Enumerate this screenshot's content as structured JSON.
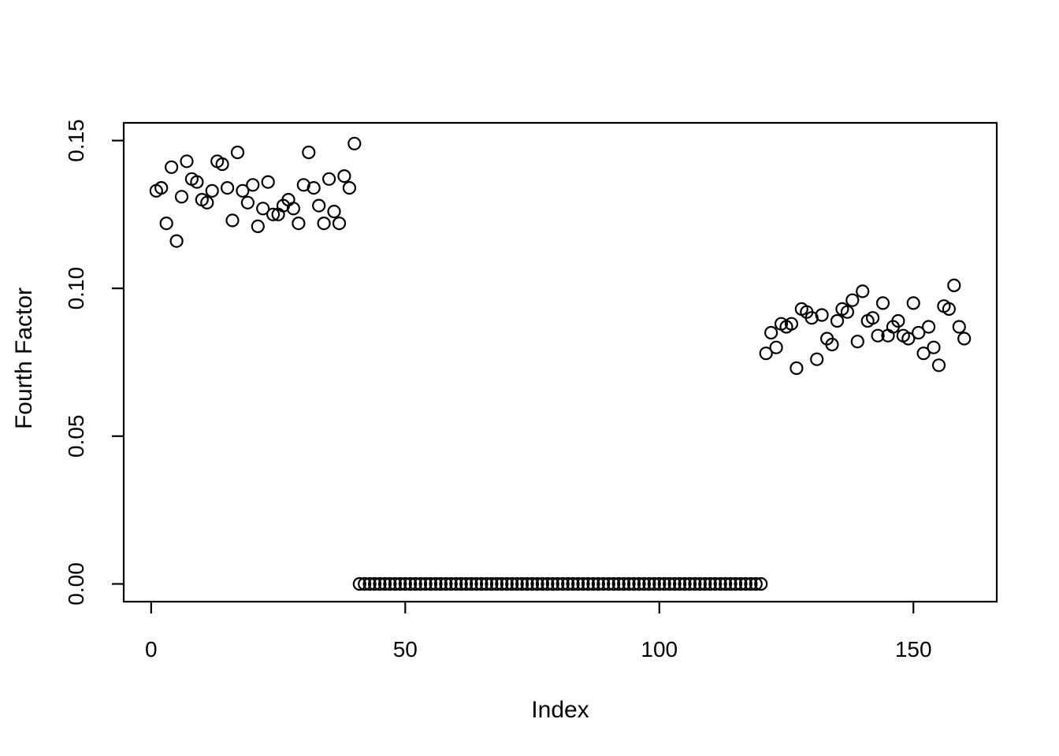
{
  "figure": {
    "background_color": "#ffffff",
    "foreground_color": "#000000",
    "title": ""
  },
  "chart_data": {
    "type": "scatter",
    "title": "",
    "xlabel": "Index",
    "ylabel": "Fourth Factor",
    "x_ticks": [
      0,
      50,
      100,
      150
    ],
    "x_tick_labels": [
      "0",
      "50",
      "100",
      "150"
    ],
    "y_ticks": [
      0,
      0.05,
      0.1,
      0.15
    ],
    "y_tick_labels": [
      "0.00",
      "0.05",
      "0.10",
      "0.15"
    ],
    "xlim": [
      -5.4,
      166.4
    ],
    "ylim": [
      -0.006,
      0.156
    ],
    "grid": false,
    "legend": "none",
    "frame": "full-box",
    "marker": {
      "shape": "open-circle",
      "radius_px": 7.5,
      "stroke_color": "#000000",
      "stroke_width_px": 2.2,
      "fill": "none"
    },
    "series": [
      {
        "name": "Fourth Factor",
        "x": [
          1,
          2,
          3,
          4,
          5,
          6,
          7,
          8,
          9,
          10,
          11,
          12,
          13,
          14,
          15,
          16,
          17,
          18,
          19,
          20,
          21,
          22,
          23,
          24,
          25,
          26,
          27,
          28,
          29,
          30,
          31,
          32,
          33,
          34,
          35,
          36,
          37,
          38,
          39,
          40,
          41,
          42,
          43,
          44,
          45,
          46,
          47,
          48,
          49,
          50,
          51,
          52,
          53,
          54,
          55,
          56,
          57,
          58,
          59,
          60,
          61,
          62,
          63,
          64,
          65,
          66,
          67,
          68,
          69,
          70,
          71,
          72,
          73,
          74,
          75,
          76,
          77,
          78,
          79,
          80,
          81,
          82,
          83,
          84,
          85,
          86,
          87,
          88,
          89,
          90,
          91,
          92,
          93,
          94,
          95,
          96,
          97,
          98,
          99,
          100,
          101,
          102,
          103,
          104,
          105,
          106,
          107,
          108,
          109,
          110,
          111,
          112,
          113,
          114,
          115,
          116,
          117,
          118,
          119,
          120,
          121,
          122,
          123,
          124,
          125,
          126,
          127,
          128,
          129,
          130,
          131,
          132,
          133,
          134,
          135,
          136,
          137,
          138,
          139,
          140,
          141,
          142,
          143,
          144,
          145,
          146,
          147,
          148,
          149,
          150,
          151,
          152,
          153,
          154,
          155,
          156,
          157,
          158,
          159,
          160
        ],
        "y": [
          0.133,
          0.134,
          0.122,
          0.141,
          0.116,
          0.131,
          0.143,
          0.137,
          0.136,
          0.13,
          0.129,
          0.133,
          0.143,
          0.142,
          0.134,
          0.123,
          0.146,
          0.133,
          0.129,
          0.135,
          0.121,
          0.127,
          0.136,
          0.125,
          0.125,
          0.128,
          0.13,
          0.127,
          0.122,
          0.135,
          0.146,
          0.134,
          0.128,
          0.122,
          0.137,
          0.126,
          0.122,
          0.138,
          0.134,
          0.149,
          0,
          0,
          0,
          0,
          0,
          0,
          0,
          0,
          0,
          0,
          0,
          0,
          0,
          0,
          0,
          0,
          0,
          0,
          0,
          0,
          0,
          0,
          0,
          0,
          0,
          0,
          0,
          0,
          0,
          0,
          0,
          0,
          0,
          0,
          0,
          0,
          0,
          0,
          0,
          0,
          0,
          0,
          0,
          0,
          0,
          0,
          0,
          0,
          0,
          0,
          0,
          0,
          0,
          0,
          0,
          0,
          0,
          0,
          0,
          0,
          0,
          0,
          0,
          0,
          0,
          0,
          0,
          0,
          0,
          0,
          0,
          0,
          0,
          0,
          0,
          0,
          0,
          0,
          0,
          0,
          0.078,
          0.085,
          0.08,
          0.088,
          0.087,
          0.088,
          0.073,
          0.093,
          0.092,
          0.09,
          0.076,
          0.091,
          0.083,
          0.081,
          0.089,
          0.093,
          0.092,
          0.096,
          0.082,
          0.099,
          0.089,
          0.09,
          0.084,
          0.095,
          0.084,
          0.087,
          0.089,
          0.084,
          0.083,
          0.095,
          0.085,
          0.078,
          0.087,
          0.08,
          0.074,
          0.094,
          0.093,
          0.101,
          0.087,
          0.083
        ]
      }
    ]
  }
}
